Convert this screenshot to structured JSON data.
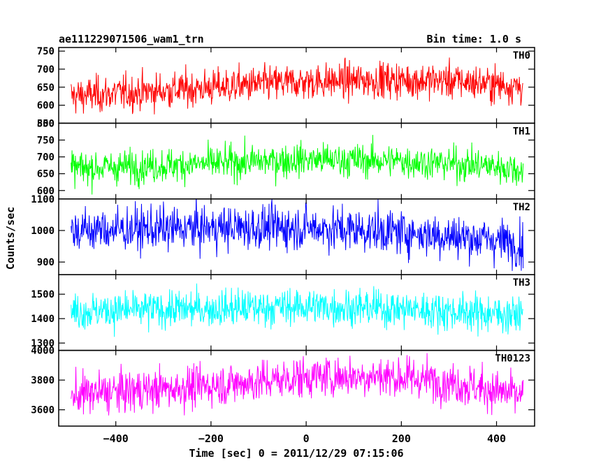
{
  "header": {
    "title": "ae111229071506_wam1_trn",
    "bin_time": "Bin time: 1.0 s"
  },
  "chart_data": {
    "type": "line",
    "title": "ae111229071506_wam1_trn",
    "subtitle": "Bin time: 1.0 s",
    "xlabel": "Time [sec] 0 = 2011/12/29 07:15:06",
    "ylabel": "Counts/sec",
    "xlim": [
      -520,
      480
    ],
    "x_range": [
      -494,
      456
    ],
    "x_ticks": [
      -400,
      -200,
      0,
      200,
      400
    ],
    "x_tick_labels": [
      "−400",
      "−200",
      "0",
      "200",
      "400"
    ],
    "grid": false,
    "panels": [
      {
        "name": "TH0",
        "color": "#ff0000",
        "ylim": [
          550,
          760
        ],
        "y_ticks": [
          550,
          600,
          650,
          700,
          750
        ],
        "profile": [
          [
            -494,
            625
          ],
          [
            -300,
            640
          ],
          [
            -100,
            658
          ],
          [
            0,
            665
          ],
          [
            150,
            670
          ],
          [
            300,
            668
          ],
          [
            456,
            652
          ]
        ],
        "noise_sd": 25
      },
      {
        "name": "TH1",
        "color": "#00ff00",
        "ylim": [
          575,
          800
        ],
        "y_ticks": [
          600,
          650,
          700,
          750,
          800
        ],
        "profile": [
          [
            -494,
            665
          ],
          [
            -200,
            680
          ],
          [
            0,
            692
          ],
          [
            200,
            688
          ],
          [
            400,
            672
          ],
          [
            456,
            660
          ]
        ],
        "noise_sd": 25
      },
      {
        "name": "TH2",
        "color": "#0000ff",
        "ylim": [
          860,
          1100
        ],
        "y_ticks": [
          900,
          1000,
          1100
        ],
        "profile": [
          [
            -494,
            1000
          ],
          [
            -200,
            1008
          ],
          [
            0,
            1010
          ],
          [
            200,
            995
          ],
          [
            400,
            970
          ],
          [
            456,
            955
          ]
        ],
        "noise_sd": 35
      },
      {
        "name": "TH3",
        "color": "#00ffff",
        "ylim": [
          1270,
          1580
        ],
        "y_ticks": [
          1300,
          1400,
          1500
        ],
        "profile": [
          [
            -494,
            1430
          ],
          [
            -200,
            1440
          ],
          [
            0,
            1450
          ],
          [
            200,
            1440
          ],
          [
            400,
            1420
          ],
          [
            456,
            1415
          ]
        ],
        "noise_sd": 38
      },
      {
        "name": "TH0123",
        "color": "#ff00ff",
        "ylim": [
          3490,
          4000
        ],
        "y_ticks": [
          3600,
          3800,
          4000
        ],
        "profile": [
          [
            -494,
            3700
          ],
          [
            -300,
            3740
          ],
          [
            -100,
            3790
          ],
          [
            0,
            3820
          ],
          [
            150,
            3830
          ],
          [
            300,
            3790
          ],
          [
            456,
            3690
          ]
        ],
        "noise_sd": 70
      }
    ]
  }
}
